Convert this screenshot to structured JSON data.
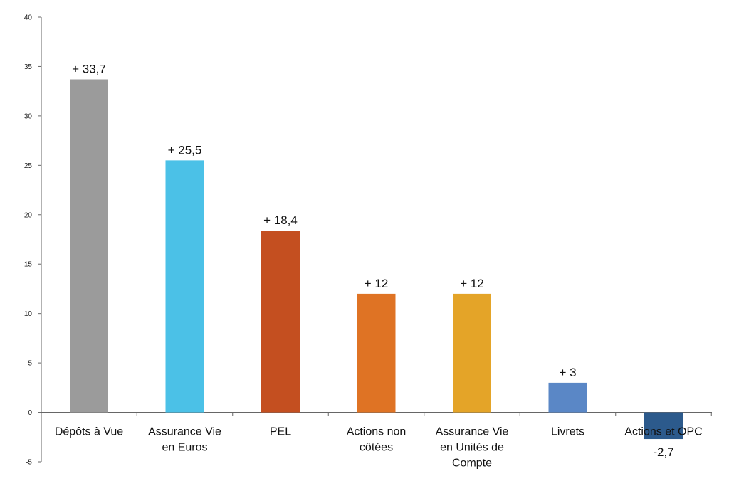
{
  "chart_data": {
    "type": "bar",
    "title": "",
    "xlabel": "",
    "ylabel": "",
    "ylim": [
      -5,
      40
    ],
    "yticks": [
      -5,
      0,
      5,
      10,
      15,
      20,
      25,
      30,
      35,
      40
    ],
    "grid": false,
    "categories": [
      [
        "Dépôts à Vue"
      ],
      [
        "Assurance Vie",
        "en Euros"
      ],
      [
        "PEL"
      ],
      [
        "Actions non",
        "côtées"
      ],
      [
        "Assurance Vie",
        "en Unités de",
        "Compte"
      ],
      [
        "Livrets"
      ],
      [
        "Actions et OPC"
      ]
    ],
    "values": [
      33.7,
      25.5,
      18.4,
      12,
      12,
      3,
      -2.7
    ],
    "data_labels": [
      "+ 33,7",
      "+ 25,5",
      "+ 18,4",
      "+ 12",
      "+ 12",
      "+ 3",
      "-2,7"
    ],
    "colors": [
      "#9b9b9b",
      "#4bc1e7",
      "#c44f20",
      "#df7324",
      "#e4a428",
      "#5a87c6",
      "#2c5a8c"
    ]
  }
}
